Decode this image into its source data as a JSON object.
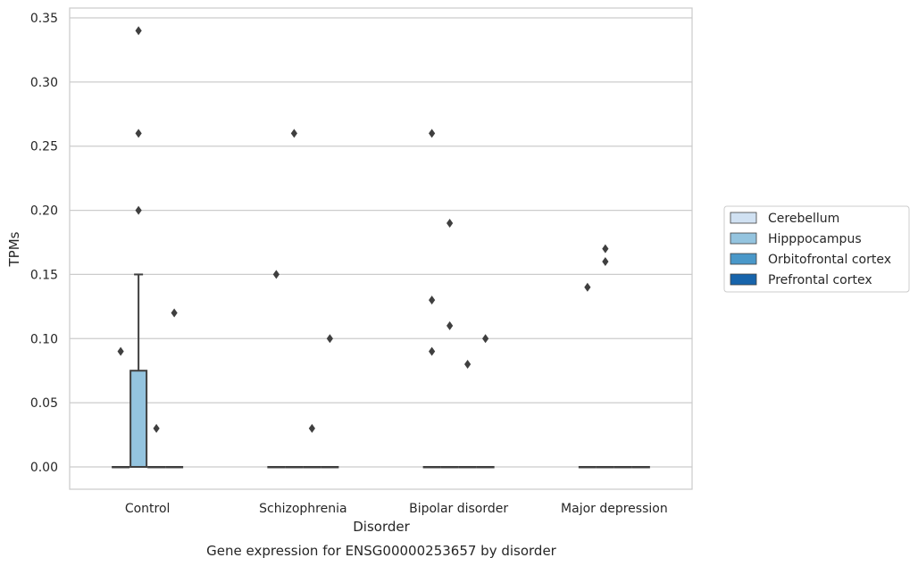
{
  "chart_data": {
    "type": "box",
    "caption": "Gene expression for ENSG00000253657 by disorder",
    "xlabel": "Disorder",
    "ylabel": "TPMs",
    "ylim": [
      -0.017,
      0.357
    ],
    "yticks": [
      0.0,
      0.05,
      0.1,
      0.15,
      0.2,
      0.25,
      0.3,
      0.35
    ],
    "ytick_labels": [
      "0.00",
      "0.05",
      "0.10",
      "0.15",
      "0.20",
      "0.25",
      "0.30",
      "0.35"
    ],
    "grid": "horizontal",
    "legend_position": "right",
    "categories": [
      "Control",
      "Schizophrenia",
      "Bipolar disorder",
      "Major depression"
    ],
    "series": [
      {
        "name": "Cerebellum",
        "color": "#d0e1f2",
        "boxes": [
          {
            "q1": 0,
            "median": 0,
            "q3": 0,
            "whisker_low": 0,
            "whisker_high": 0,
            "outliers": [
              0.09
            ]
          },
          {
            "q1": 0,
            "median": 0,
            "q3": 0,
            "whisker_low": 0,
            "whisker_high": 0,
            "outliers": [
              0.15
            ]
          },
          {
            "q1": 0,
            "median": 0,
            "q3": 0,
            "whisker_low": 0,
            "whisker_high": 0,
            "outliers": [
              0.26,
              0.13,
              0.09
            ]
          },
          {
            "q1": 0,
            "median": 0,
            "q3": 0,
            "whisker_low": 0,
            "whisker_high": 0,
            "outliers": [
              0.14
            ]
          }
        ]
      },
      {
        "name": "Hipppocampus",
        "color": "#94c4df",
        "boxes": [
          {
            "q1": 0,
            "median": 0,
            "q3": 0.075,
            "whisker_low": 0,
            "whisker_high": 0.15,
            "outliers": [
              0.34,
              0.26,
              0.2
            ]
          },
          {
            "q1": 0,
            "median": 0,
            "q3": 0,
            "whisker_low": 0,
            "whisker_high": 0,
            "outliers": [
              0.26
            ]
          },
          {
            "q1": 0,
            "median": 0,
            "q3": 0,
            "whisker_low": 0,
            "whisker_high": 0,
            "outliers": [
              0.19,
              0.11
            ]
          },
          {
            "q1": 0,
            "median": 0,
            "q3": 0,
            "whisker_low": 0,
            "whisker_high": 0,
            "outliers": [
              0.17,
              0.16
            ]
          }
        ]
      },
      {
        "name": "Orbitofrontal cortex",
        "color": "#4a98c9",
        "boxes": [
          {
            "q1": 0,
            "median": 0,
            "q3": 0,
            "whisker_low": 0,
            "whisker_high": 0,
            "outliers": [
              0.03
            ]
          },
          {
            "q1": 0,
            "median": 0,
            "q3": 0,
            "whisker_low": 0,
            "whisker_high": 0,
            "outliers": [
              0.03
            ]
          },
          {
            "q1": 0,
            "median": 0,
            "q3": 0,
            "whisker_low": 0,
            "whisker_high": 0,
            "outliers": [
              0.08
            ]
          },
          {
            "q1": 0,
            "median": 0,
            "q3": 0,
            "whisker_low": 0,
            "whisker_high": 0,
            "outliers": []
          }
        ]
      },
      {
        "name": "Prefrontal cortex",
        "color": "#1764ab",
        "boxes": [
          {
            "q1": 0,
            "median": 0,
            "q3": 0,
            "whisker_low": 0,
            "whisker_high": 0,
            "outliers": [
              0.12
            ]
          },
          {
            "q1": 0,
            "median": 0,
            "q3": 0,
            "whisker_low": 0,
            "whisker_high": 0,
            "outliers": [
              0.1
            ]
          },
          {
            "q1": 0,
            "median": 0,
            "q3": 0,
            "whisker_low": 0,
            "whisker_high": 0,
            "outliers": [
              0.1
            ]
          },
          {
            "q1": 0,
            "median": 0,
            "q3": 0,
            "whisker_low": 0,
            "whisker_high": 0,
            "outliers": []
          }
        ]
      }
    ]
  }
}
